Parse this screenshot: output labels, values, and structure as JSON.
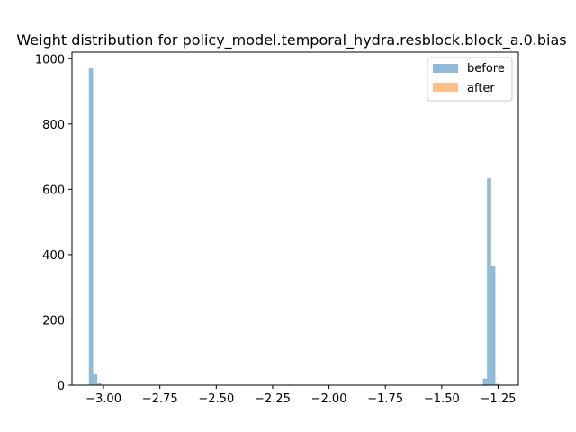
{
  "chart_data": {
    "type": "bar",
    "title": "Weight distribution for policy_model.temporal_hydra.resblock.block_a.0.bias",
    "xlabel": "",
    "ylabel": "",
    "xlim": [
      -3.14,
      -1.16
    ],
    "ylim": [
      0,
      1020
    ],
    "x_ticks": [
      -3.0,
      -2.75,
      -2.5,
      -2.25,
      -2.0,
      -1.75,
      -1.5,
      -1.25
    ],
    "x_tick_labels": [
      "−3.00",
      "−2.75",
      "−2.50",
      "−2.25",
      "−2.00",
      "−1.75",
      "−1.50",
      "−1.25"
    ],
    "y_ticks": [
      0,
      200,
      400,
      600,
      800,
      1000
    ],
    "y_tick_labels": [
      "0",
      "200",
      "400",
      "600",
      "800",
      "1000"
    ],
    "grid": false,
    "legend_position": "top-right",
    "series": [
      {
        "name": "before",
        "color": "#1f77b4",
        "alpha": 0.5,
        "bin_width": 0.0185,
        "bins": [
          {
            "x0": -3.065,
            "count": 970
          },
          {
            "x0": -3.0465,
            "count": 33
          },
          {
            "x0": -3.028,
            "count": 8
          },
          {
            "x0": -1.3175,
            "count": 20
          },
          {
            "x0": -1.299,
            "count": 634
          },
          {
            "x0": -1.2805,
            "count": 365
          },
          {
            "x0": -1.262,
            "count": 4
          }
        ]
      },
      {
        "name": "after",
        "color": "#ff7f0e",
        "alpha": 0.5,
        "bin_width": 0.02,
        "bins": [
          {
            "x0": -2.18,
            "count": 2
          },
          {
            "x0": -2.16,
            "count": 1
          }
        ]
      }
    ]
  }
}
